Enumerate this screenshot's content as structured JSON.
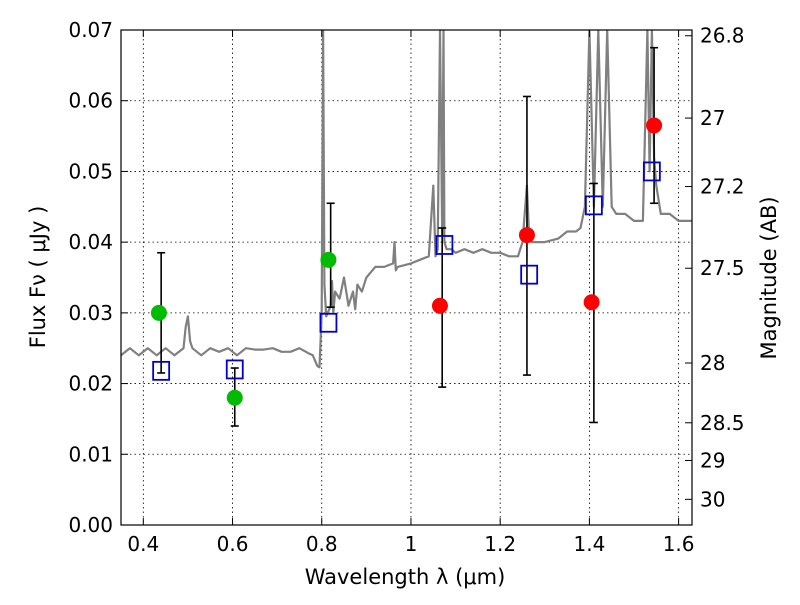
{
  "chart_data": {
    "type": "scatter",
    "xlabel": "Wavelength  λ (μm)",
    "ylabel": "Flux  Fν  ( μJy )",
    "y2label": "Magnitude (AB)",
    "xlim": [
      0.35,
      1.63
    ],
    "ylim": [
      0.0,
      0.07
    ],
    "grid": true,
    "x_ticks": [
      0.4,
      0.6,
      0.8,
      1.0,
      1.2,
      1.4,
      1.6
    ],
    "x_tick_labels": [
      "0.4",
      "0.6",
      "0.8",
      "1",
      "1.2",
      "1.4",
      "1.6"
    ],
    "y_ticks": [
      0.0,
      0.01,
      0.02,
      0.03,
      0.04,
      0.05,
      0.06,
      0.07
    ],
    "y_tick_labels": [
      "0.00",
      "0.01",
      "0.02",
      "0.03",
      "0.04",
      "0.05",
      "0.06",
      "0.07"
    ],
    "y2_ticks": [
      26.8,
      27,
      27.2,
      27.5,
      28,
      28.5,
      29,
      30
    ],
    "y2_tick_labels": [
      "26.8",
      "27",
      "27.2",
      "27.5",
      "28",
      "28.5",
      "29",
      "30"
    ],
    "series": [
      {
        "color": "#808080",
        "type": "line",
        "x": [
          0.35,
          0.37,
          0.39,
          0.41,
          0.43,
          0.45,
          0.47,
          0.49,
          0.495,
          0.5,
          0.505,
          0.51,
          0.53,
          0.55,
          0.57,
          0.59,
          0.61,
          0.63,
          0.65,
          0.67,
          0.69,
          0.71,
          0.73,
          0.75,
          0.77,
          0.78,
          0.79,
          0.795,
          0.8,
          0.803,
          0.806,
          0.81,
          0.82,
          0.823,
          0.826,
          0.83,
          0.84,
          0.85,
          0.86,
          0.87,
          0.875,
          0.88,
          0.89,
          0.9,
          0.92,
          0.94,
          0.96,
          0.963,
          0.966,
          0.97,
          1.0,
          1.02,
          1.04,
          1.05,
          1.055,
          1.06,
          1.065,
          1.07,
          1.073,
          1.075,
          1.08,
          1.09,
          1.1,
          1.12,
          1.14,
          1.16,
          1.18,
          1.2,
          1.22,
          1.24,
          1.25,
          1.26,
          1.265,
          1.27,
          1.28,
          1.3,
          1.33,
          1.35,
          1.37,
          1.38,
          1.39,
          1.4,
          1.41,
          1.42,
          1.43,
          1.44,
          1.45,
          1.46,
          1.48,
          1.5,
          1.52,
          1.53,
          1.535,
          1.54,
          1.545,
          1.55,
          1.56,
          1.58,
          1.6,
          1.63
        ],
        "y": [
          0.024,
          0.025,
          0.024,
          0.025,
          0.024,
          0.025,
          0.024,
          0.025,
          0.028,
          0.0295,
          0.026,
          0.025,
          0.024,
          0.025,
          0.0245,
          0.025,
          0.024,
          0.025,
          0.0248,
          0.0248,
          0.025,
          0.0245,
          0.0245,
          0.025,
          0.0243,
          0.024,
          0.0225,
          0.0223,
          0.03,
          0.07,
          0.034,
          0.0295,
          0.031,
          0.0345,
          0.03,
          0.033,
          0.032,
          0.035,
          0.031,
          0.033,
          0.0305,
          0.034,
          0.033,
          0.035,
          0.0365,
          0.0365,
          0.037,
          0.04,
          0.036,
          0.0365,
          0.037,
          0.0375,
          0.038,
          0.048,
          0.038,
          0.039,
          0.07,
          0.041,
          0.07,
          0.04,
          0.039,
          0.039,
          0.0385,
          0.039,
          0.0385,
          0.039,
          0.0385,
          0.0385,
          0.038,
          0.038,
          0.04,
          0.048,
          0.0405,
          0.04,
          0.04,
          0.04,
          0.0405,
          0.0415,
          0.0415,
          0.042,
          0.045,
          0.07,
          0.045,
          0.07,
          0.045,
          0.07,
          0.045,
          0.044,
          0.044,
          0.043,
          0.043,
          0.07,
          0.05,
          0.07,
          0.052,
          0.048,
          0.044,
          0.044,
          0.043,
          0.043
        ]
      },
      {
        "color": "#00bb00",
        "marker": "circle",
        "x": [
          0.435,
          0.605,
          0.815
        ],
        "y": [
          0.03,
          0.018,
          0.0375
        ]
      },
      {
        "color": "#ff0000",
        "marker": "circle",
        "x": [
          1.065,
          1.26,
          1.405,
          1.545
        ],
        "y": [
          0.031,
          0.041,
          0.0315,
          0.0565
        ]
      },
      {
        "color": "#0000cc",
        "marker": "square-open",
        "x": [
          0.44,
          0.605,
          0.815,
          1.075,
          1.265,
          1.41,
          1.54
        ],
        "y": [
          0.0218,
          0.022,
          0.0286,
          0.0396,
          0.0354,
          0.0452,
          0.05
        ]
      }
    ],
    "error_bars": [
      {
        "x": 0.44,
        "low": 0.0215,
        "high": 0.0385
      },
      {
        "x": 0.605,
        "low": 0.014,
        "high": 0.0222
      },
      {
        "x": 0.82,
        "low": 0.0308,
        "high": 0.0455
      },
      {
        "x": 1.07,
        "low": 0.0195,
        "high": 0.042
      },
      {
        "x": 1.26,
        "low": 0.0212,
        "high": 0.0606
      },
      {
        "x": 1.41,
        "low": 0.0145,
        "high": 0.0483
      },
      {
        "x": 1.545,
        "low": 0.0455,
        "high": 0.0675
      }
    ]
  }
}
